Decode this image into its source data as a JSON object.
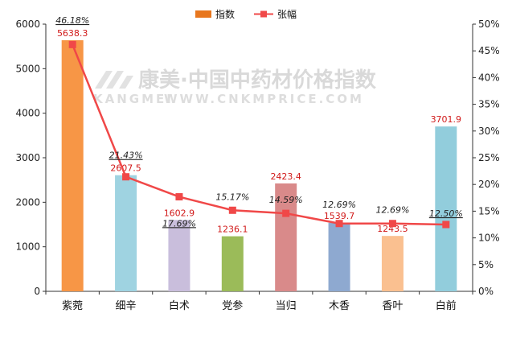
{
  "watermark": {
    "name_cn": "康美·中国中药材价格指数",
    "brand_en": "KANGMEI",
    "url_en": "WWW.CNKMPRICE.COM"
  },
  "legend": {
    "bar_label": "指数",
    "line_label": "张幅"
  },
  "colors": {
    "line": "#f04848",
    "legend_bar": "#e8771e",
    "value_label": "#d11a1a",
    "axis": "#333333"
  },
  "chart_data": {
    "type": "bar",
    "categories": [
      "紫菀",
      "细辛",
      "白术",
      "党参",
      "当归",
      "木香",
      "香叶",
      "白前"
    ],
    "series": [
      {
        "name": "指数",
        "type": "bar",
        "axis": "left",
        "values": [
          5638.3,
          2607.5,
          1602.9,
          1236.1,
          2423.4,
          1539.7,
          1243.5,
          3701.9
        ],
        "value_labels": [
          "5638.3",
          "2607.5",
          "1602.9",
          "1236.1",
          "2423.4",
          "1539.7",
          "1243.5",
          "3701.9"
        ],
        "colors": [
          "#f79646",
          "#9fd3e1",
          "#c9bedc",
          "#9bbb59",
          "#d98a8a",
          "#8ea9d0",
          "#fac090",
          "#92cddc"
        ]
      },
      {
        "name": "张幅",
        "type": "line",
        "axis": "right",
        "values": [
          46.18,
          21.43,
          17.69,
          15.17,
          14.59,
          12.69,
          12.69,
          12.5
        ],
        "value_labels": [
          "46.18%",
          "21.43%",
          "17.69%",
          "15.17%",
          "14.59%",
          "12.69%",
          "12.69%",
          "12.50%"
        ],
        "underlined": [
          true,
          true,
          true,
          false,
          false,
          false,
          false,
          true
        ]
      }
    ],
    "y_left": {
      "min": 0,
      "max": 6000,
      "step": 1000,
      "ticks": [
        "0",
        "1000",
        "2000",
        "3000",
        "4000",
        "5000",
        "6000"
      ]
    },
    "y_right": {
      "min": 0,
      "max": 50,
      "step": 5,
      "ticks": [
        "0%",
        "5%",
        "10%",
        "15%",
        "20%",
        "25%",
        "30%",
        "35%",
        "40%",
        "45%",
        "50%"
      ]
    },
    "grid": false,
    "legend_position": "top"
  }
}
